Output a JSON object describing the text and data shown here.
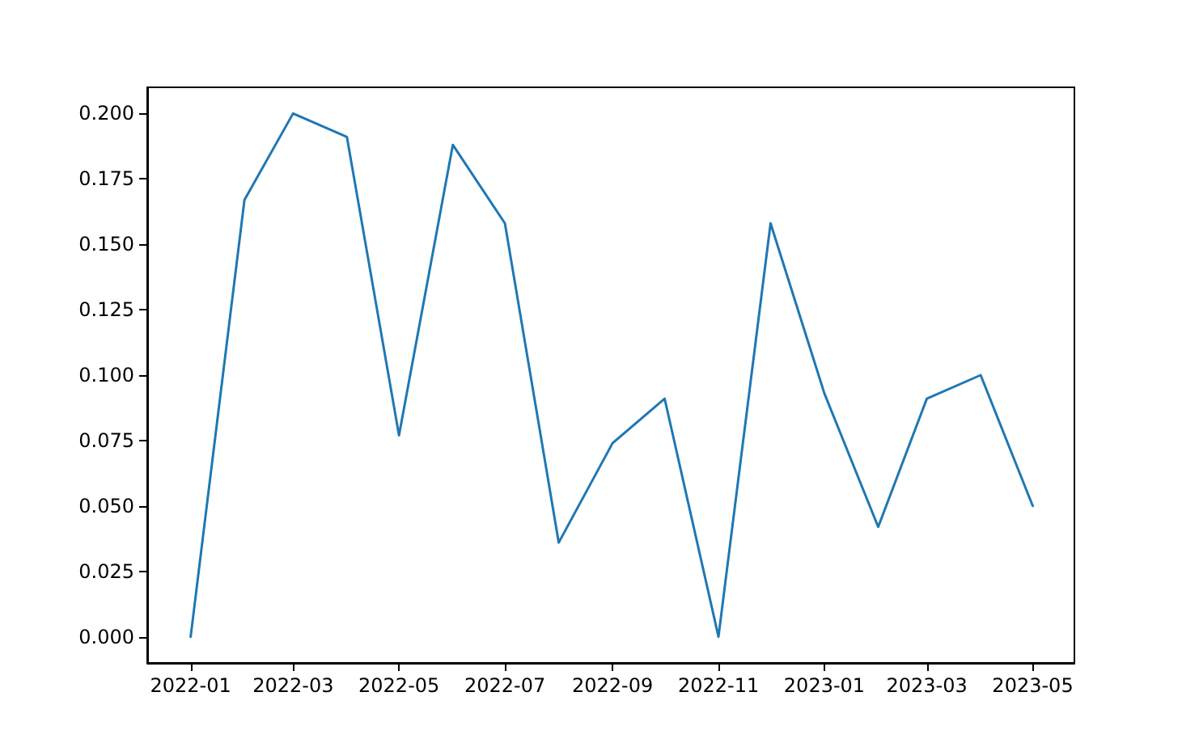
{
  "chart_data": {
    "type": "line",
    "x": [
      "2022-01",
      "2022-02",
      "2022-03",
      "2022-04",
      "2022-05",
      "2022-06",
      "2022-07",
      "2022-08",
      "2022-09",
      "2022-10",
      "2022-11",
      "2022-12",
      "2023-01",
      "2023-02",
      "2023-03",
      "2023-04",
      "2023-05"
    ],
    "series": [
      {
        "color": "#1f77b4",
        "values": [
          0,
          0.167,
          0.2,
          0.191,
          0.077,
          0.188,
          0.158,
          0.036,
          0.074,
          0.091,
          0,
          0.158,
          0.093,
          0.042,
          0.091,
          0.1,
          0.05
        ]
      }
    ],
    "xlim": [
      "2021-12-07",
      "2023-05-25"
    ],
    "xticks": [
      "2022-01",
      "2022-03",
      "2022-05",
      "2022-07",
      "2022-09",
      "2022-11",
      "2023-01",
      "2023-03",
      "2023-05"
    ],
    "ylim": [
      -0.01,
      0.21
    ],
    "yticks": [
      {
        "value": 0,
        "label": "0.000"
      },
      {
        "value": 0.025,
        "label": "0.025"
      },
      {
        "value": 0.05,
        "label": "0.050"
      },
      {
        "value": 0.075,
        "label": "0.075"
      },
      {
        "value": 0.1,
        "label": "0.100"
      },
      {
        "value": 0.125,
        "label": "0.125"
      },
      {
        "value": 0.15,
        "label": "0.150"
      },
      {
        "value": 0.175,
        "label": "0.175"
      },
      {
        "value": 0.2,
        "label": "0.200"
      }
    ],
    "marker": "none",
    "line_style": "solid"
  }
}
